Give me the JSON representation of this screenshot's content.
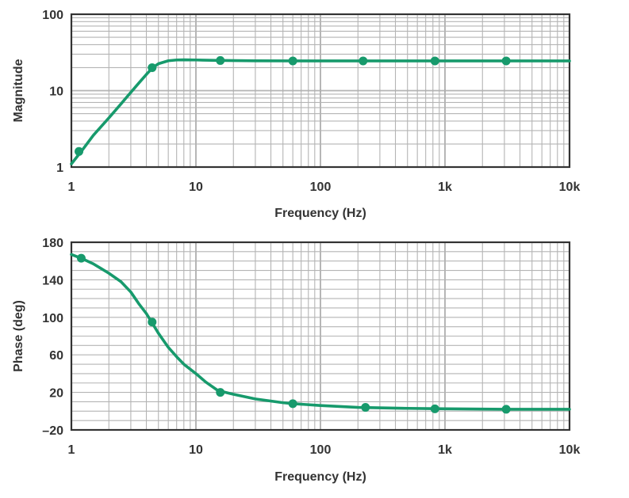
{
  "colors": {
    "curve": "#179a6c",
    "grid": "#b4b4b4",
    "frame": "#333333",
    "text": "#333333"
  },
  "chart_data": [
    {
      "type": "line",
      "title": "",
      "xlabel": "Frequency (Hz)",
      "ylabel": "Magnitude",
      "x_scale": "log",
      "y_scale": "log",
      "xlim": [
        1,
        10000
      ],
      "ylim": [
        1,
        100
      ],
      "grid": true,
      "x_ticks": [
        {
          "value": 1,
          "label": "1"
        },
        {
          "value": 10,
          "label": "10"
        },
        {
          "value": 100,
          "label": "100"
        },
        {
          "value": 1000,
          "label": "1k"
        },
        {
          "value": 10000,
          "label": "10k"
        }
      ],
      "y_ticks": [
        {
          "value": 1,
          "label": "1"
        },
        {
          "value": 10,
          "label": "10"
        },
        {
          "value": 100,
          "label": "100"
        }
      ],
      "curve": {
        "x": [
          1,
          1.2,
          1.5,
          2,
          2.5,
          3,
          3.5,
          4,
          4.5,
          5,
          6,
          7,
          8,
          10,
          15,
          30,
          100,
          1000,
          10000
        ],
        "y": [
          1.1,
          1.6,
          2.6,
          4.4,
          6.7,
          9.5,
          12.7,
          16.3,
          20.0,
          22.5,
          24.6,
          25.2,
          25.3,
          25.2,
          24.9,
          24.6,
          24.5,
          24.5,
          24.5
        ]
      },
      "markers": {
        "x": [
          1.15,
          4.45,
          15.7,
          60,
          220,
          830,
          3100
        ],
        "y": [
          1.6,
          20.0,
          24.8,
          24.5,
          24.5,
          24.5,
          24.5
        ]
      }
    },
    {
      "type": "line",
      "title": "",
      "xlabel": "Frequency (Hz)",
      "ylabel": "Phase (deg)",
      "x_scale": "log",
      "y_scale": "linear",
      "xlim": [
        1,
        10000
      ],
      "ylim": [
        -20,
        180
      ],
      "grid": true,
      "x_ticks": [
        {
          "value": 1,
          "label": "1"
        },
        {
          "value": 10,
          "label": "10"
        },
        {
          "value": 100,
          "label": "100"
        },
        {
          "value": 1000,
          "label": "1k"
        },
        {
          "value": 10000,
          "label": "10k"
        }
      ],
      "y_ticks": [
        {
          "value": -20,
          "label": "–20"
        },
        {
          "value": 20,
          "label": "20"
        },
        {
          "value": 60,
          "label": "60"
        },
        {
          "value": 100,
          "label": "100"
        },
        {
          "value": 140,
          "label": "140"
        },
        {
          "value": 180,
          "label": "180"
        }
      ],
      "curve": {
        "x": [
          1,
          1.2,
          1.5,
          2,
          2.5,
          3,
          3.5,
          4,
          4.5,
          5,
          6,
          7,
          8,
          10,
          12,
          15,
          20,
          30,
          50,
          60,
          100,
          200,
          500,
          1000,
          3000,
          10000
        ],
        "y": [
          167,
          163,
          157,
          147,
          138,
          127,
          114,
          104,
          93,
          83,
          68,
          58,
          50,
          40,
          31,
          22,
          18,
          13,
          9,
          8,
          6,
          4,
          3,
          2.5,
          2,
          2
        ]
      },
      "markers": {
        "x": [
          1.2,
          4.45,
          15.7,
          60,
          230,
          830,
          3100
        ],
        "y": [
          163,
          95,
          20,
          8,
          4,
          2.5,
          2
        ]
      }
    }
  ]
}
